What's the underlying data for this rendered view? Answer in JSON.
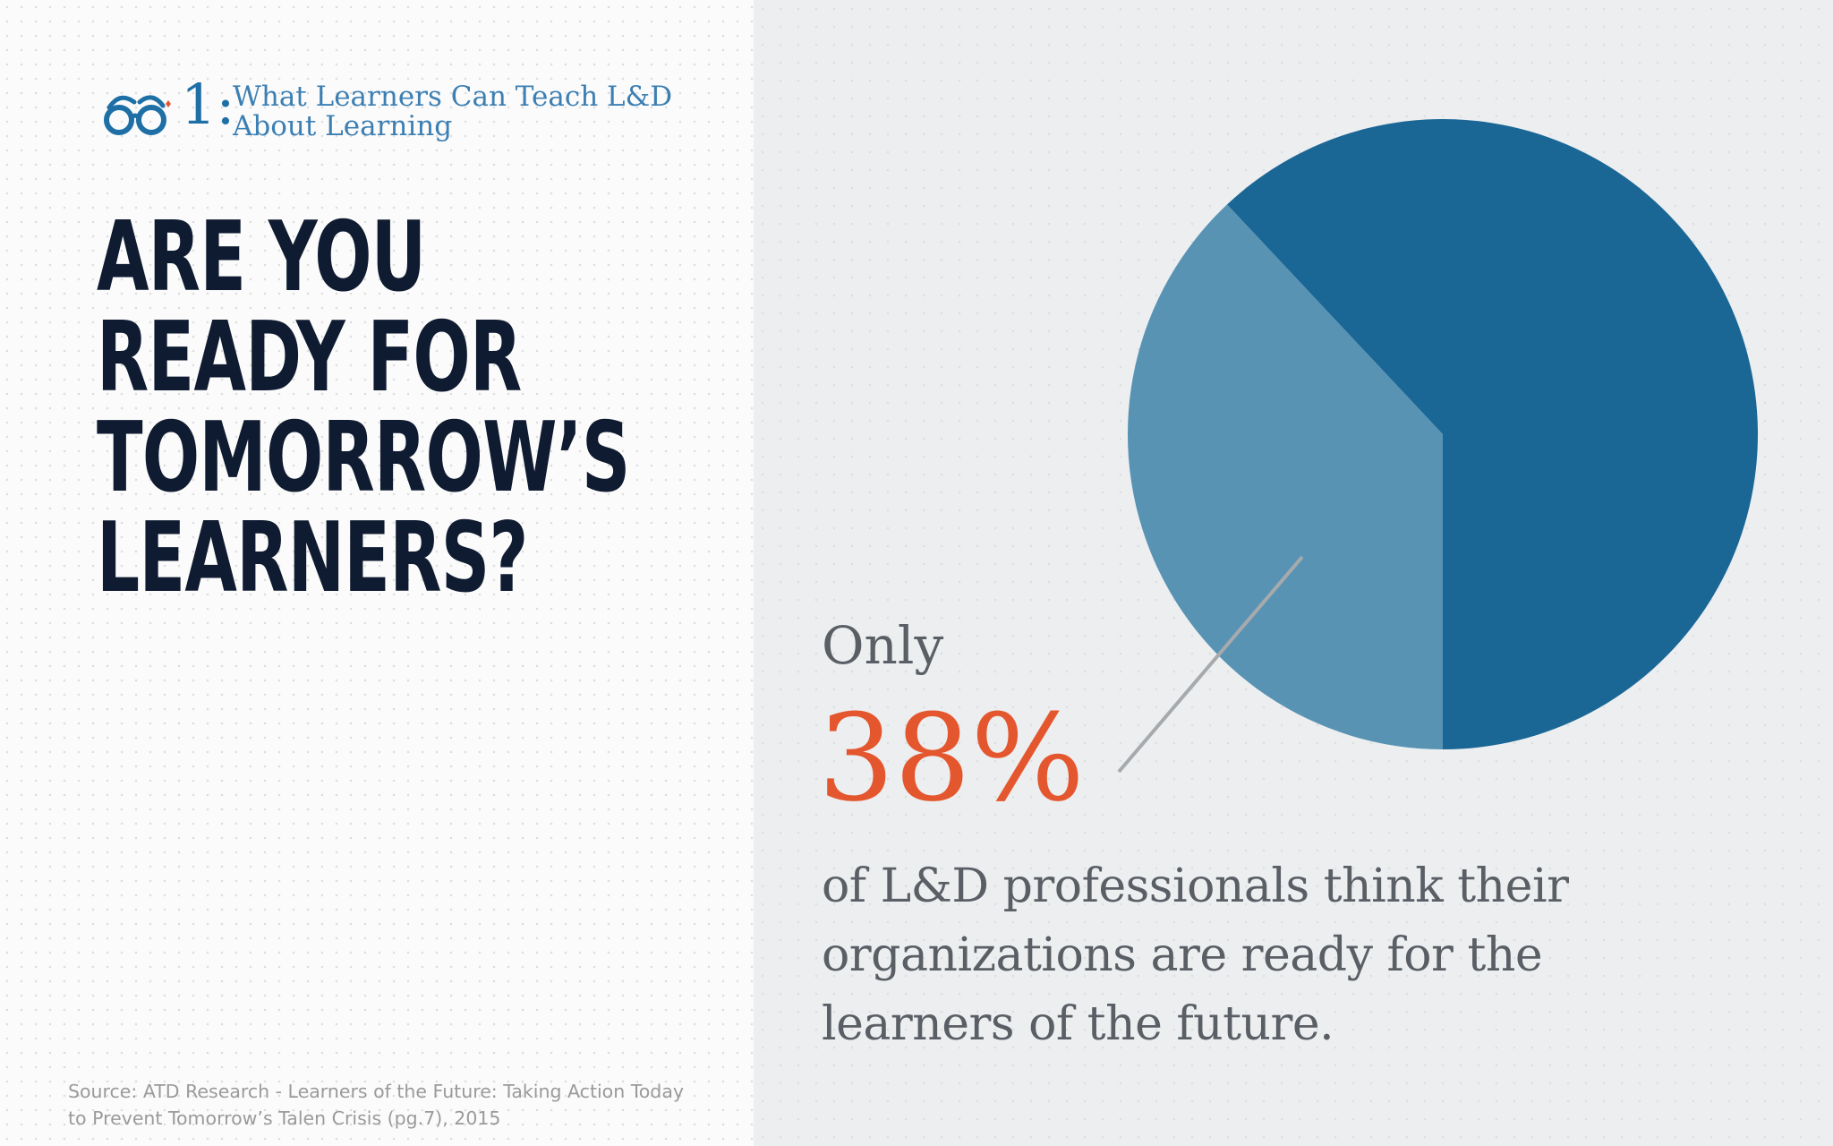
{
  "brand": {
    "number": "1:",
    "title_line1": "What Learners Can Teach L&D",
    "title_line2": "About Learning",
    "icon": "glasses-icon"
  },
  "headline": {
    "line1": "ARE YOU",
    "line2": "READY FOR",
    "line3": "TOMORROW’S",
    "line4": "LEARNERS?"
  },
  "source": {
    "line1": "Source: ATD Research - Learners of the Future: Taking Action Today",
    "line2": "to Prevent Tomorrow’s Talen Crisis (pg.7), 2015"
  },
  "callout": {
    "prefix": "Only",
    "value": "38%",
    "line1": "of L&D professionals think their",
    "line2": "organizations are ready for the",
    "line3": "learners of the future."
  },
  "colors": {
    "highlight_slice": "#5893b4",
    "rest_slice": "#1a6695",
    "accent": "#e4572e",
    "headline": "#0f1b30",
    "leader_line": "#a7aaad"
  },
  "chart_data": {
    "type": "pie",
    "slices": [
      {
        "value": 38,
        "color": "#5893b4",
        "highlighted": true
      },
      {
        "value": 62,
        "color": "#1a6695",
        "highlighted": false
      }
    ],
    "legend": "none"
  }
}
